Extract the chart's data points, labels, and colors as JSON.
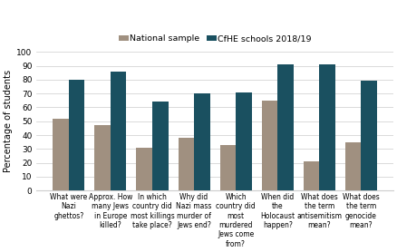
{
  "categories": [
    "What were\nNazi\nghettos?",
    "Approx. How\nmany Jews\nin Europe\nkilled?",
    "In which\ncountry did\nmost killings\ntake place?",
    "Why did\nNazi mass\nmurder of\nJews end?",
    "Which\ncountry did\nmost\nmurdered\nJews come\nfrom?",
    "When did\nthe\nHolocaust\nhappen?",
    "What does\nthe term\nantisemitism\nmean?",
    "What does\nthe term\ngenocide\nmean?"
  ],
  "national_sample": [
    52,
    47,
    31,
    38,
    33,
    65,
    21,
    35
  ],
  "cfhe_schools": [
    80,
    86,
    64,
    70,
    71,
    91,
    91,
    79
  ],
  "national_color": "#a09080",
  "cfhe_color": "#1a5060",
  "ylabel": "Percentage of students",
  "legend_national": "National sample",
  "legend_cfhe": "CfHE schools 2018/19",
  "ylim": [
    0,
    100
  ],
  "yticks": [
    0,
    10,
    20,
    30,
    40,
    50,
    60,
    70,
    80,
    90,
    100
  ],
  "bar_width": 0.38,
  "xlabel_fontsize": 5.5,
  "ylabel_fontsize": 7.0,
  "ytick_fontsize": 6.5,
  "legend_fontsize": 6.8,
  "legend_marker_scale": 0.7
}
